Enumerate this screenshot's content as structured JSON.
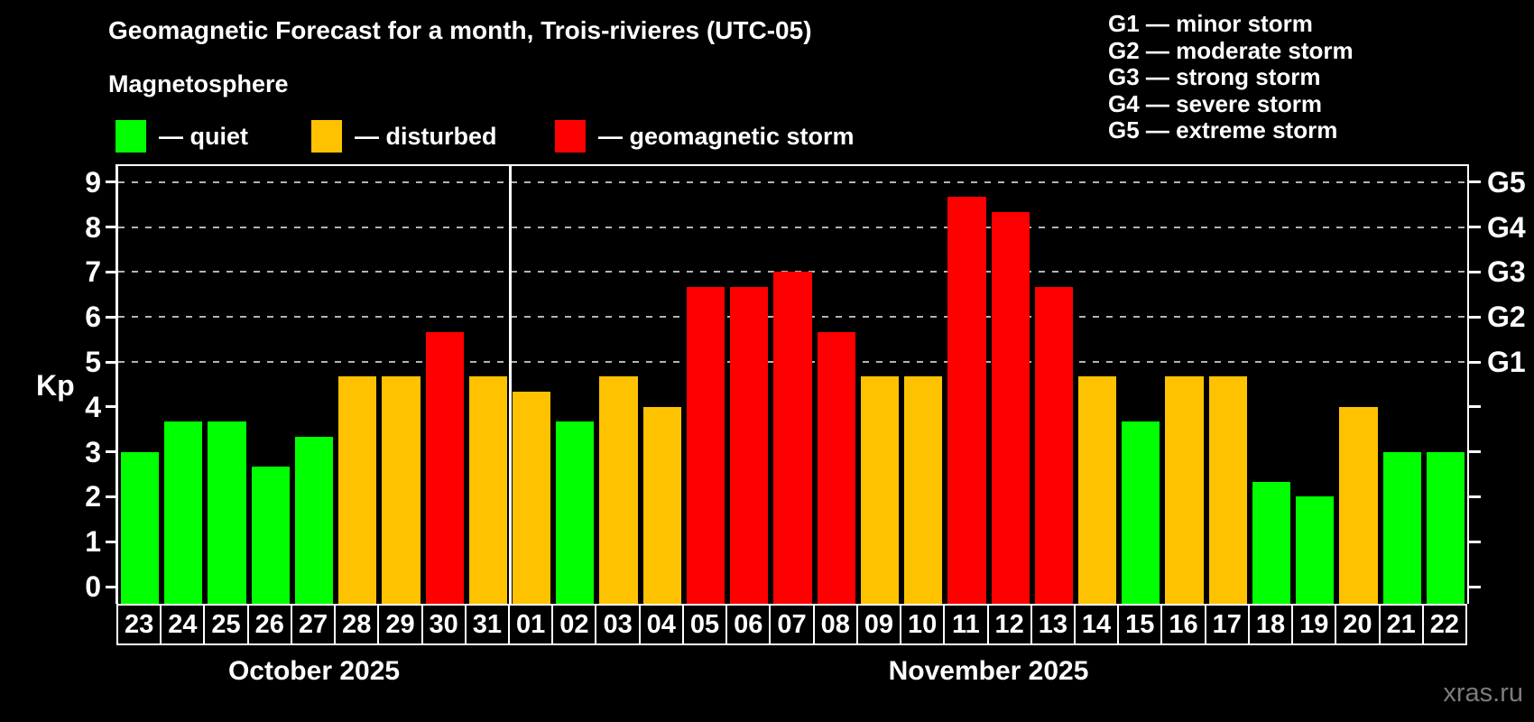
{
  "title": "Geomagnetic Forecast for a month, Trois-rivieres (UTC-05)",
  "subtitle": "Magnetosphere",
  "legend": [
    {
      "key": "quiet",
      "label": "— quiet",
      "color": "#00ff00"
    },
    {
      "key": "disturbed",
      "label": "— disturbed",
      "color": "#ffc200"
    },
    {
      "key": "storm",
      "label": "— geomagnetic storm",
      "color": "#ff0000"
    }
  ],
  "storm_scale": [
    "G1 — minor storm",
    "G2 — moderate storm",
    "G3 — strong storm",
    "G4 — severe storm",
    "G5 — extreme storm"
  ],
  "y_axis": {
    "label": "Kp",
    "ticks": [
      0,
      1,
      2,
      3,
      4,
      5,
      6,
      7,
      8,
      9
    ]
  },
  "right_axis": {
    "ticks": [
      0,
      1,
      2,
      3,
      4,
      5,
      6,
      7,
      8,
      9
    ],
    "labels": [
      {
        "kp": 5,
        "label": "G1"
      },
      {
        "kp": 6,
        "label": "G2"
      },
      {
        "kp": 7,
        "label": "G3"
      },
      {
        "kp": 8,
        "label": "G4"
      },
      {
        "kp": 9,
        "label": "G5"
      }
    ]
  },
  "months": [
    {
      "label": "October 2025",
      "days": 9
    },
    {
      "label": "November 2025",
      "days": 22
    }
  ],
  "watermark": "xras.ru",
  "chart_data": {
    "type": "bar",
    "title": "Geomagnetic Forecast for a month, Trois-rivieres (UTC-05)",
    "xlabel": "",
    "ylabel": "Kp",
    "ylim": [
      0,
      9
    ],
    "gridlines_at": [
      5,
      6,
      7,
      8,
      9
    ],
    "legend_position": "top-left",
    "categories": [
      "23",
      "24",
      "25",
      "26",
      "27",
      "28",
      "29",
      "30",
      "31",
      "01",
      "02",
      "03",
      "04",
      "05",
      "06",
      "07",
      "08",
      "09",
      "10",
      "11",
      "12",
      "13",
      "14",
      "15",
      "16",
      "17",
      "18",
      "19",
      "20",
      "21",
      "22"
    ],
    "values": [
      3.0,
      3.67,
      3.67,
      2.67,
      3.33,
      4.67,
      4.67,
      5.67,
      4.67,
      4.33,
      3.67,
      4.67,
      4.0,
      6.67,
      6.67,
      7.0,
      5.67,
      4.67,
      4.67,
      8.67,
      8.33,
      6.67,
      4.67,
      3.67,
      4.67,
      4.67,
      2.33,
      2.0,
      4.0,
      3.0,
      3.0
    ],
    "levels": [
      "quiet",
      "quiet",
      "quiet",
      "quiet",
      "quiet",
      "disturbed",
      "disturbed",
      "storm",
      "disturbed",
      "disturbed",
      "quiet",
      "disturbed",
      "disturbed",
      "storm",
      "storm",
      "storm",
      "storm",
      "disturbed",
      "disturbed",
      "storm",
      "storm",
      "storm",
      "disturbed",
      "quiet",
      "disturbed",
      "disturbed",
      "quiet",
      "quiet",
      "disturbed",
      "quiet",
      "quiet"
    ]
  }
}
